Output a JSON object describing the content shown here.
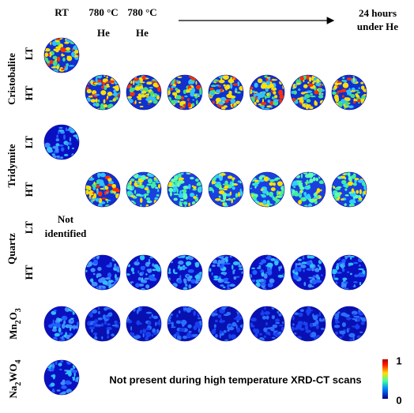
{
  "header": {
    "rt": "RT",
    "col1": {
      "temp": "780 °C",
      "gas": "He"
    },
    "col2": {
      "temp": "780 °C",
      "gas": "He"
    },
    "end": {
      "line1": "24 hours",
      "line2": "under He"
    }
  },
  "rows": [
    {
      "phase": "Cristobalite",
      "states": [
        "LT",
        "HT"
      ]
    },
    {
      "phase": "Tridymite",
      "states": [
        "LT",
        "HT"
      ]
    },
    {
      "phase": "Quartz",
      "states": [
        "LT",
        "HT"
      ],
      "note": [
        "Not",
        "identified"
      ]
    },
    {
      "phase": [
        "Mn",
        "2",
        "O",
        "3"
      ]
    },
    {
      "phase": [
        "Na",
        "2",
        "WO",
        "4"
      ],
      "note": "Not present during high temperature XRD-CT scans"
    }
  ],
  "colorbar": {
    "max": "1",
    "min": "0"
  }
}
